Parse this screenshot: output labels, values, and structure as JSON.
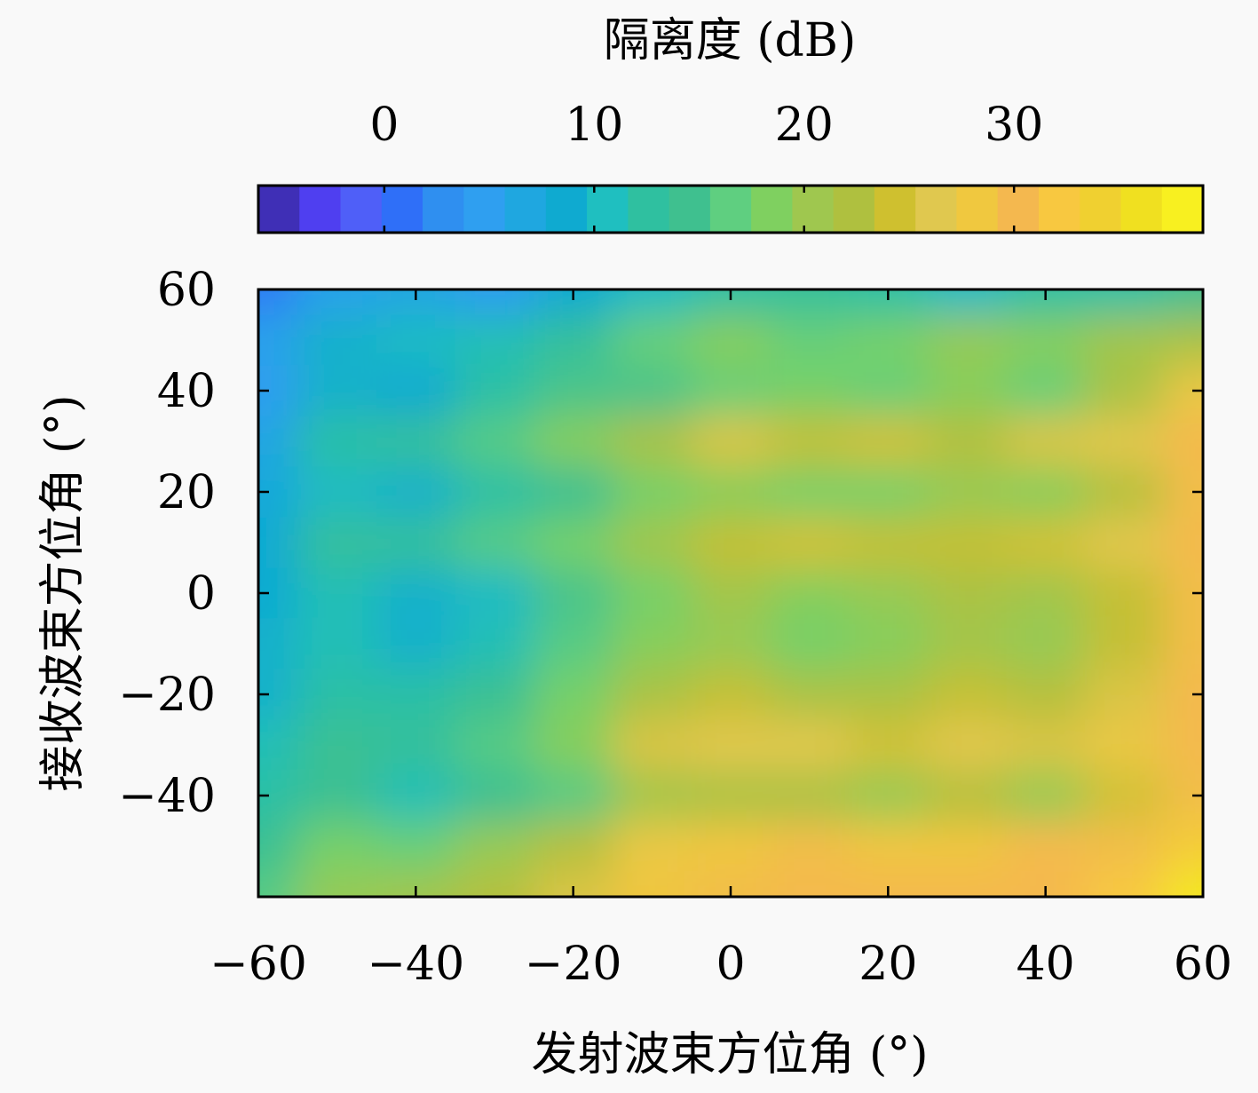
{
  "chart_data": {
    "type": "heatmap",
    "colorbar": {
      "label": "隔离度 (dB)",
      "ticks": [
        0,
        10,
        20,
        30
      ],
      "tick_labels": [
        "0",
        "10",
        "20",
        "30"
      ],
      "range": [
        -6,
        39
      ],
      "colors": [
        "#3f2fb6",
        "#4f3ff0",
        "#4f5ff8",
        "#2f6ff8",
        "#2f8ff0",
        "#2f9ff0",
        "#1fa7e0",
        "#0faad0",
        "#1fbfc0",
        "#2fc0a0",
        "#3fc08f",
        "#5fcf80",
        "#7fd060",
        "#9fc74f",
        "#afc03f",
        "#cfc02f",
        "#e0c84f",
        "#f0c83f",
        "#f4b84f",
        "#f8c840",
        "#f0d030",
        "#f0e020",
        "#f8f020"
      ]
    },
    "x": {
      "label": "发射波束方位角 (°)",
      "ticks": [
        -60,
        -40,
        -20,
        0,
        20,
        40,
        60
      ],
      "tick_labels": [
        "−60",
        "−40",
        "−20",
        "0",
        "20",
        "40",
        "60"
      ],
      "range": [
        -60,
        60
      ]
    },
    "y": {
      "label": "接收波束方位角 (°)",
      "ticks": [
        -40,
        -20,
        0,
        20,
        40,
        60
      ],
      "tick_labels": [
        "−40",
        "−20",
        "0",
        "20",
        "40",
        "60"
      ],
      "range": [
        -60,
        60
      ]
    },
    "grid_x": [
      -60,
      -50,
      -40,
      -30,
      -20,
      -10,
      0,
      10,
      20,
      30,
      40,
      50,
      60
    ],
    "grid_y": [
      60,
      50,
      40,
      30,
      20,
      10,
      0,
      -10,
      -20,
      -30,
      -40,
      -50,
      -60
    ],
    "z": [
      [
        1,
        5,
        6,
        4,
        8,
        10,
        12,
        13,
        12,
        10,
        12,
        12,
        14
      ],
      [
        5,
        9,
        10,
        11,
        13,
        17,
        19,
        17,
        18,
        20,
        19,
        21,
        22
      ],
      [
        4,
        9,
        8,
        12,
        15,
        15,
        17,
        18,
        17,
        19,
        17,
        22,
        28
      ],
      [
        6,
        12,
        13,
        16,
        19,
        22,
        26,
        24,
        25,
        23,
        26,
        27,
        31
      ],
      [
        7,
        10,
        9,
        12,
        14,
        18,
        19,
        18,
        18,
        20,
        19,
        23,
        30
      ],
      [
        8,
        13,
        13,
        16,
        18,
        21,
        24,
        25,
        24,
        24,
        25,
        27,
        31
      ],
      [
        8,
        11,
        9,
        10,
        15,
        18,
        21,
        19,
        20,
        22,
        21,
        24,
        30
      ],
      [
        9,
        11,
        9,
        11,
        16,
        19,
        20,
        18,
        19,
        21,
        20,
        24,
        30
      ],
      [
        9,
        12,
        12,
        14,
        18,
        22,
        24,
        22,
        22,
        24,
        23,
        26,
        31
      ],
      [
        11,
        14,
        13,
        16,
        19,
        26,
        27,
        27,
        25,
        27,
        26,
        28,
        31
      ],
      [
        12,
        14,
        11,
        14,
        16,
        21,
        22,
        22,
        20,
        23,
        20,
        25,
        30
      ],
      [
        14,
        18,
        17,
        20,
        23,
        28,
        29,
        30,
        29,
        29,
        31,
        30,
        34
      ],
      [
        16,
        20,
        21,
        23,
        26,
        29,
        30,
        31,
        31,
        31,
        31,
        33,
        38
      ]
    ]
  }
}
